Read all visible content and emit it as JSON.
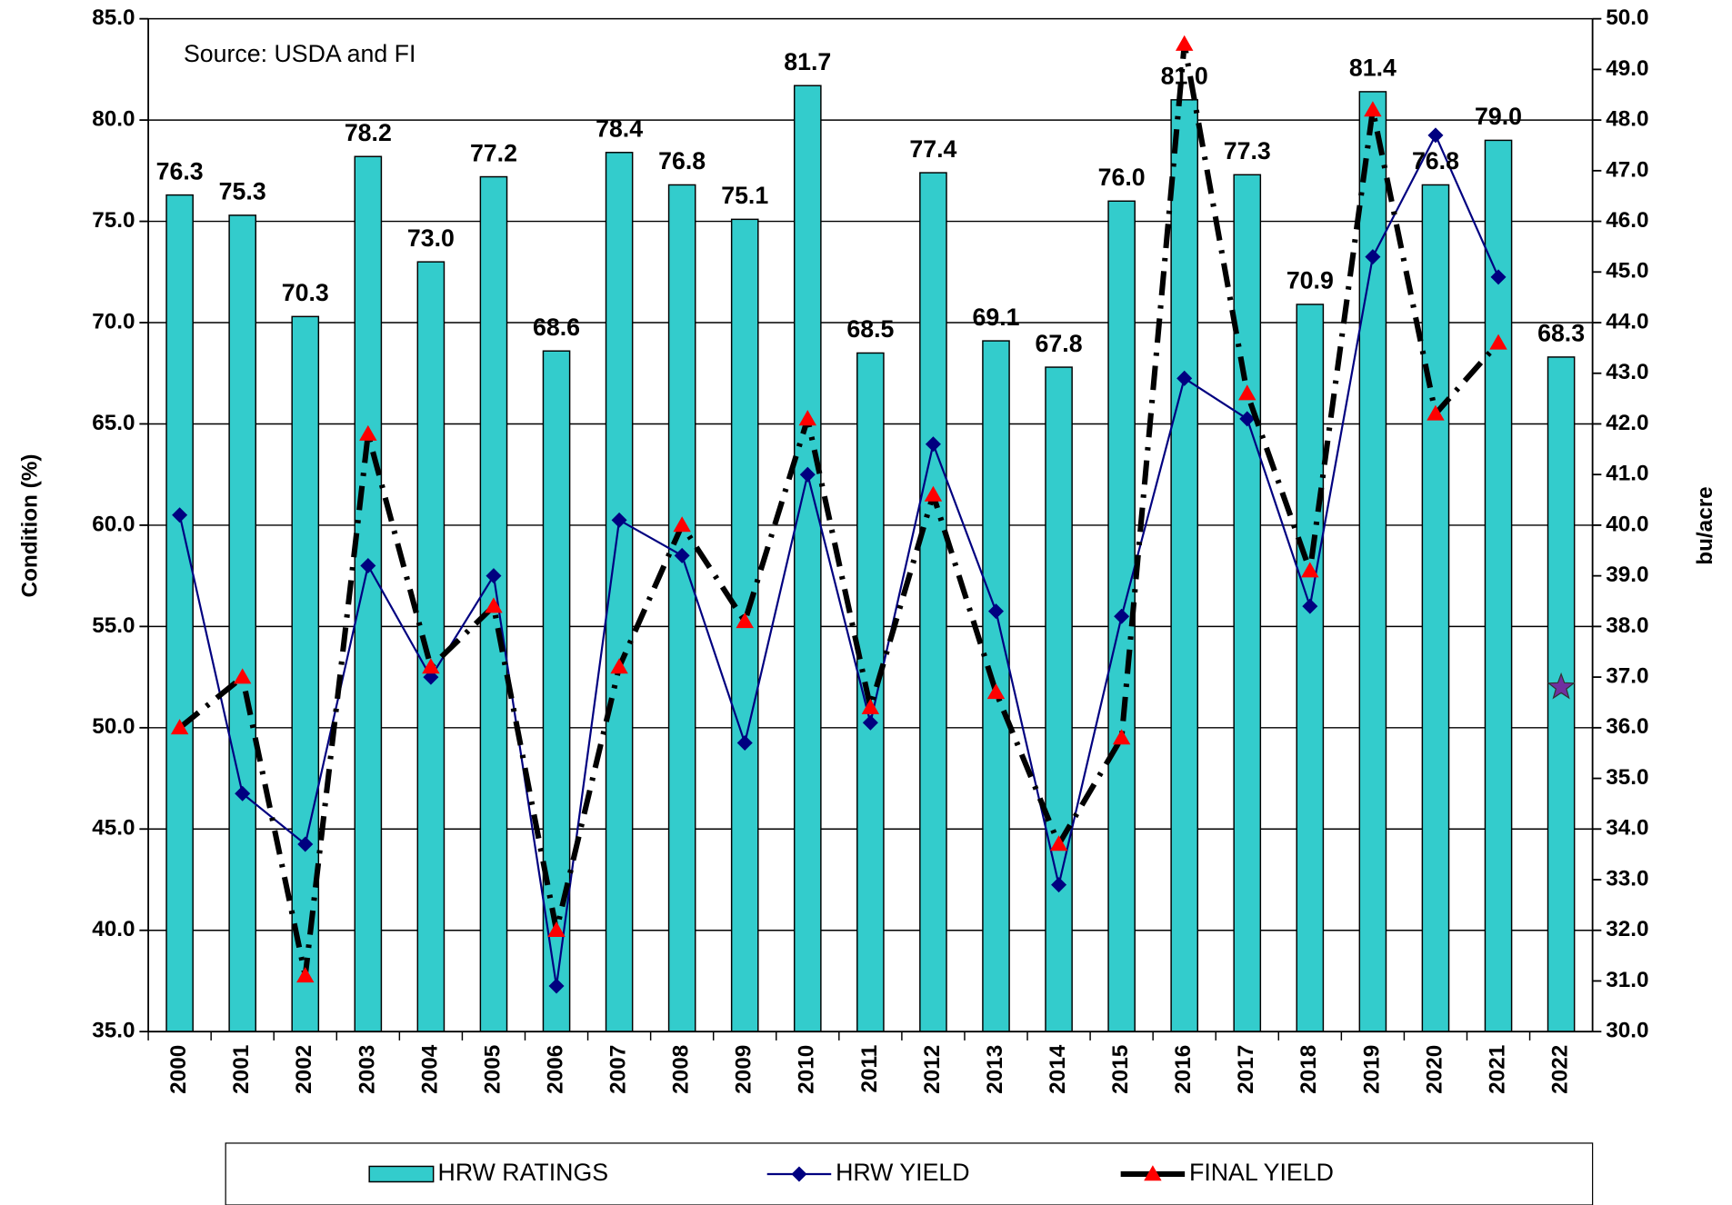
{
  "chart_data": {
    "type": "bar",
    "annotation": "Source: USDA and FI",
    "y_label": "Condition (%)",
    "y2_label": "bu/acre",
    "categories": [
      "2000",
      "2001",
      "2002",
      "2003",
      "2004",
      "2005",
      "2006",
      "2007",
      "2008",
      "2009",
      "2010",
      "2011",
      "2012",
      "2013",
      "2014",
      "2015",
      "2016",
      "2017",
      "2018",
      "2019",
      "2020",
      "2021",
      "2022"
    ],
    "series": [
      {
        "name": "HRW RATINGS",
        "type": "bar",
        "color": "#33cccc",
        "values": [
          76.3,
          75.3,
          70.3,
          78.2,
          73.0,
          77.2,
          68.6,
          78.4,
          76.8,
          75.1,
          81.7,
          68.5,
          77.4,
          69.1,
          67.8,
          76.0,
          81.0,
          77.3,
          70.9,
          81.4,
          76.8,
          79.0,
          68.3
        ],
        "value_labels": [
          "76.3",
          "75.3",
          "70.3",
          "78.2",
          "73.0",
          "77.2",
          "68.6",
          "78.4",
          "76.8",
          "75.1",
          "81.7",
          "68.5",
          "77.4",
          "69.1",
          "67.8",
          "76.0",
          "81.0",
          "77.3",
          "70.9",
          "81.4",
          "76.8",
          "79.0",
          "68.3"
        ]
      },
      {
        "name": "HRW YIELD",
        "type": "line",
        "axis": "y2",
        "color": "#000080",
        "marker": "diamond",
        "values": [
          40.2,
          34.7,
          33.7,
          39.2,
          37.0,
          39.0,
          30.9,
          40.1,
          39.4,
          35.7,
          41.0,
          36.1,
          41.6,
          38.3,
          32.9,
          38.2,
          42.9,
          42.1,
          38.4,
          45.3,
          47.7,
          44.9,
          null
        ]
      },
      {
        "name": "FINAL YIELD",
        "type": "line",
        "axis": "y2",
        "color": "#000000",
        "marker": "triangle",
        "marker_color": "#ff0000",
        "dashed": true,
        "values": [
          36.0,
          37.0,
          31.1,
          41.8,
          37.2,
          38.4,
          32.0,
          37.2,
          40.0,
          38.1,
          42.1,
          36.4,
          40.6,
          36.7,
          33.7,
          35.8,
          49.5,
          42.6,
          39.1,
          48.2,
          42.2,
          43.6,
          null
        ]
      }
    ],
    "highlight": {
      "x": "2022",
      "value": 36.8,
      "axis": "y2",
      "marker": "star",
      "color": "#7030a0"
    },
    "ylim": [
      35,
      85
    ],
    "yticks": [
      {
        "value": 35,
        "label": "35.0"
      },
      {
        "value": 40,
        "label": "40.0"
      },
      {
        "value": 45,
        "label": "45.0"
      },
      {
        "value": 50,
        "label": "50.0"
      },
      {
        "value": 55,
        "label": "55.0"
      },
      {
        "value": 60,
        "label": "60.0"
      },
      {
        "value": 65,
        "label": "65.0"
      },
      {
        "value": 70,
        "label": "70.0"
      },
      {
        "value": 75,
        "label": "75.0"
      },
      {
        "value": 80,
        "label": "80.0"
      },
      {
        "value": 85,
        "label": "85.0"
      }
    ],
    "y2lim": [
      30,
      50
    ],
    "y2ticks": [
      {
        "value": 30,
        "label": "30.0"
      },
      {
        "value": 31,
        "label": "31.0"
      },
      {
        "value": 32,
        "label": "32.0"
      },
      {
        "value": 33,
        "label": "33.0"
      },
      {
        "value": 34,
        "label": "34.0"
      },
      {
        "value": 35,
        "label": "35.0"
      },
      {
        "value": 36,
        "label": "36.0"
      },
      {
        "value": 37,
        "label": "37.0"
      },
      {
        "value": 38,
        "label": "38.0"
      },
      {
        "value": 39,
        "label": "39.0"
      },
      {
        "value": 40,
        "label": "40.0"
      },
      {
        "value": 41,
        "label": "41.0"
      },
      {
        "value": 42,
        "label": "42.0"
      },
      {
        "value": 43,
        "label": "43.0"
      },
      {
        "value": 44,
        "label": "44.0"
      },
      {
        "value": 45,
        "label": "45.0"
      },
      {
        "value": 46,
        "label": "46.0"
      },
      {
        "value": 47,
        "label": "47.0"
      },
      {
        "value": 48,
        "label": "48.0"
      },
      {
        "value": 49,
        "label": "49.0"
      },
      {
        "value": 50,
        "label": "50.0"
      }
    ],
    "grid": true,
    "legend": "bottom"
  }
}
